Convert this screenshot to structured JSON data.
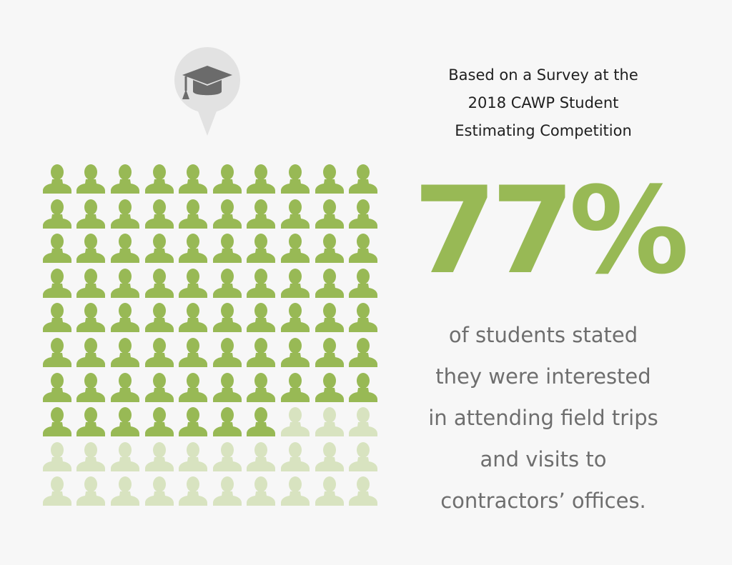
{
  "colors": {
    "background": "#f7f7f7",
    "accent": "#98b955",
    "accent_light": "#d8e3c0",
    "pin_fill": "#e2e2e2",
    "pin_icon": "#6b6b6b",
    "heading_text": "#1f1f1f",
    "body_text": "#6e6e6e"
  },
  "icon": {
    "name": "graduation-cap-icon"
  },
  "survey": {
    "lines": [
      "Based on a Survey at the",
      "2018 CAWP Student",
      "Estimating Competition"
    ]
  },
  "stat": {
    "value": "77%",
    "highlighted_count": 77,
    "total_count": 100
  },
  "description": {
    "lines": [
      "of students stated",
      "they were interested",
      "in attending field trips",
      "and visits to",
      "contractors’ offices."
    ]
  }
}
